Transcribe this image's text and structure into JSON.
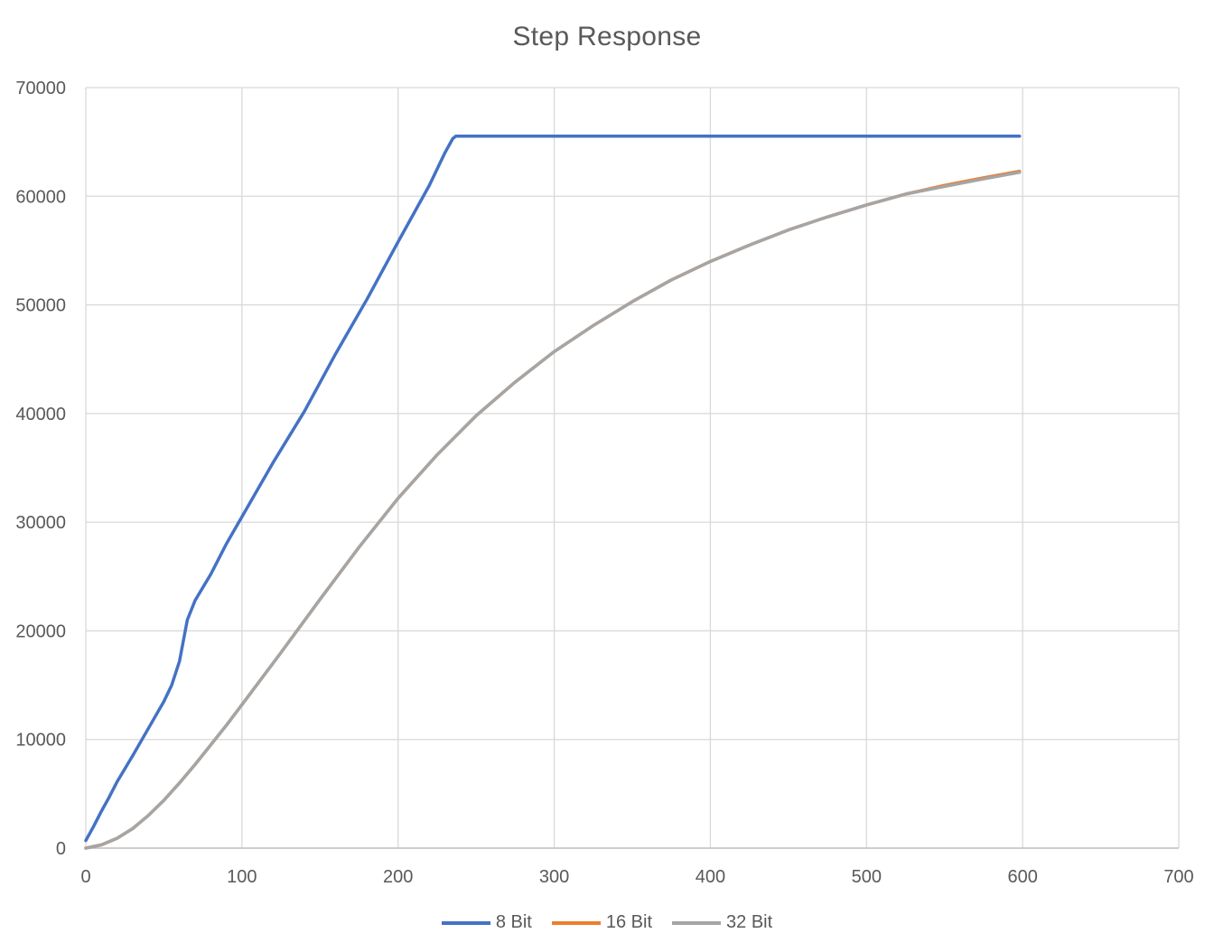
{
  "chart_data": {
    "type": "line",
    "title": "Step Response",
    "xlabel": "",
    "ylabel": "",
    "xlim": [
      0,
      700
    ],
    "ylim": [
      0,
      70000
    ],
    "x_ticks": [
      0,
      100,
      200,
      300,
      400,
      500,
      600,
      700
    ],
    "y_ticks": [
      0,
      10000,
      20000,
      30000,
      40000,
      50000,
      60000,
      70000
    ],
    "grid": true,
    "legend_position": "bottom",
    "series": [
      {
        "name": "8 Bit",
        "color": "#4472C4",
        "points": [
          [
            0,
            700
          ],
          [
            5,
            2000
          ],
          [
            10,
            3400
          ],
          [
            15,
            4700
          ],
          [
            20,
            6100
          ],
          [
            30,
            8500
          ],
          [
            40,
            11000
          ],
          [
            50,
            13500
          ],
          [
            55,
            15000
          ],
          [
            60,
            17200
          ],
          [
            65,
            21000
          ],
          [
            70,
            22800
          ],
          [
            80,
            25200
          ],
          [
            90,
            28000
          ],
          [
            100,
            30500
          ],
          [
            120,
            35500
          ],
          [
            140,
            40200
          ],
          [
            160,
            45500
          ],
          [
            180,
            50500
          ],
          [
            200,
            55800
          ],
          [
            220,
            61000
          ],
          [
            230,
            64000
          ],
          [
            235,
            65300
          ],
          [
            237,
            65535
          ],
          [
            598,
            65535
          ]
        ]
      },
      {
        "name": "16 Bit",
        "color": "#ED7D31",
        "points": [
          [
            0,
            0
          ],
          [
            10,
            300
          ],
          [
            20,
            900
          ],
          [
            30,
            1800
          ],
          [
            40,
            3000
          ],
          [
            50,
            4400
          ],
          [
            60,
            6000
          ],
          [
            70,
            7700
          ],
          [
            80,
            9500
          ],
          [
            90,
            11300
          ],
          [
            100,
            13200
          ],
          [
            125,
            18000
          ],
          [
            150,
            22900
          ],
          [
            175,
            27700
          ],
          [
            200,
            32200
          ],
          [
            225,
            36200
          ],
          [
            250,
            39800
          ],
          [
            275,
            42900
          ],
          [
            300,
            45700
          ],
          [
            325,
            48100
          ],
          [
            350,
            50300
          ],
          [
            375,
            52300
          ],
          [
            400,
            54000
          ],
          [
            425,
            55500
          ],
          [
            450,
            56900
          ],
          [
            475,
            58100
          ],
          [
            500,
            59200
          ],
          [
            525,
            60200
          ],
          [
            550,
            61000
          ],
          [
            575,
            61700
          ],
          [
            598,
            62300
          ]
        ]
      },
      {
        "name": "32 Bit",
        "color": "#A5A5A5",
        "points": [
          [
            0,
            0
          ],
          [
            10,
            300
          ],
          [
            20,
            900
          ],
          [
            30,
            1800
          ],
          [
            40,
            3000
          ],
          [
            50,
            4400
          ],
          [
            60,
            6000
          ],
          [
            70,
            7700
          ],
          [
            80,
            9500
          ],
          [
            90,
            11300
          ],
          [
            100,
            13200
          ],
          [
            125,
            18000
          ],
          [
            150,
            22900
          ],
          [
            175,
            27700
          ],
          [
            200,
            32200
          ],
          [
            225,
            36200
          ],
          [
            250,
            39800
          ],
          [
            275,
            42900
          ],
          [
            300,
            45700
          ],
          [
            325,
            48100
          ],
          [
            350,
            50300
          ],
          [
            375,
            52300
          ],
          [
            400,
            54000
          ],
          [
            425,
            55500
          ],
          [
            450,
            56900
          ],
          [
            475,
            58100
          ],
          [
            500,
            59200
          ],
          [
            525,
            60200
          ],
          [
            550,
            60900
          ],
          [
            575,
            61600
          ],
          [
            598,
            62200
          ]
        ]
      }
    ]
  }
}
